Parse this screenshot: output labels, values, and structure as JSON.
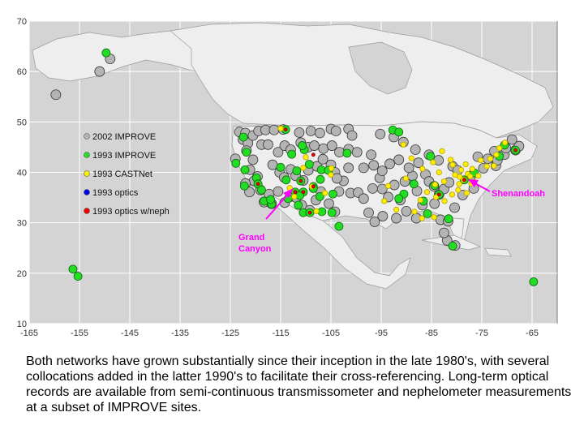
{
  "chart_data": {
    "type": "scatter",
    "title": "",
    "xlabel": "",
    "ylabel": "",
    "xlim": [
      -165,
      -60
    ],
    "ylim": [
      10,
      70
    ],
    "xticks": [
      -165,
      -155,
      -145,
      -135,
      -125,
      -115,
      -105,
      -95,
      -85,
      -75,
      -65
    ],
    "yticks": [
      10,
      20,
      30,
      40,
      50,
      60,
      70
    ],
    "grid": true,
    "background": "map of North America",
    "legend_position": "left-center",
    "legend": [
      {
        "label": "2002 IMPROVE",
        "color": "#b4b4b4"
      },
      {
        "label": "1993 IMPROVE",
        "color": "#22dd22"
      },
      {
        "label": "1993 CASTNet",
        "color": "#ffee00"
      },
      {
        "label": "1993 optics",
        "color": "#0000ee"
      },
      {
        "label": "1993 optics w/neph",
        "color": "#ee0000"
      }
    ],
    "annotations": [
      {
        "text": "Grand Canyon",
        "lines": [
          "Grand",
          "Canyon"
        ],
        "lon": -112.1,
        "lat": 36.1
      },
      {
        "text": "Shenandoah",
        "lines": [
          "Shenandoah"
        ],
        "lon": -78.4,
        "lat": 38.5
      }
    ],
    "series": [
      {
        "name": "2002 IMPROVE",
        "color": "#b4b4b4",
        "points": [
          [
            -159.7,
            55.4
          ],
          [
            -151,
            60
          ],
          [
            -148.9,
            62.5
          ],
          [
            -123.2,
            48
          ],
          [
            -122.5,
            46.5
          ],
          [
            -122,
            47.8
          ],
          [
            -121.5,
            45.8
          ],
          [
            -120.5,
            47.3
          ],
          [
            -119.4,
            48.2
          ],
          [
            -118,
            48.4
          ],
          [
            -116.3,
            48.4
          ],
          [
            -114.5,
            48.5
          ],
          [
            -111.3,
            47.9
          ],
          [
            -109,
            48.2
          ],
          [
            -107.2,
            47.8
          ],
          [
            -105,
            48.6
          ],
          [
            -104,
            48.2
          ],
          [
            -101.5,
            48.6
          ],
          [
            -100.8,
            47.3
          ],
          [
            -124,
            42.7
          ],
          [
            -121.8,
            44.3
          ],
          [
            -120.5,
            42.5
          ],
          [
            -118.8,
            45.5
          ],
          [
            -117.5,
            45.5
          ],
          [
            -115.5,
            44
          ],
          [
            -114.2,
            45.3
          ],
          [
            -113,
            44.5
          ],
          [
            -111,
            45.9
          ],
          [
            -109.5,
            45
          ],
          [
            -108.3,
            45.3
          ],
          [
            -106.5,
            44.7
          ],
          [
            -104.8,
            45.3
          ],
          [
            -103.3,
            44
          ],
          [
            -101.5,
            44.6
          ],
          [
            -99.8,
            44
          ],
          [
            -97,
            43.5
          ],
          [
            -121.1,
            40.5
          ],
          [
            -119.6,
            39.2
          ],
          [
            -120.3,
            38.3
          ],
          [
            -116.6,
            41.5
          ],
          [
            -115.2,
            40
          ],
          [
            -114.3,
            39
          ],
          [
            -113,
            40.6
          ],
          [
            -112,
            39.3
          ],
          [
            -110.5,
            38.4
          ],
          [
            -109.5,
            40.4
          ],
          [
            -107.8,
            41.2
          ],
          [
            -106.6,
            42.6
          ],
          [
            -105,
            41.5
          ],
          [
            -104.2,
            40
          ],
          [
            -102.5,
            38.3
          ],
          [
            -103.8,
            38.8
          ],
          [
            -101.5,
            40.9
          ],
          [
            -122,
            37.8
          ],
          [
            -121.2,
            36.1
          ],
          [
            -119,
            36.5
          ],
          [
            -118.3,
            34.1
          ],
          [
            -117.3,
            35.7
          ],
          [
            -116.8,
            33.8
          ],
          [
            -115.5,
            36.2
          ],
          [
            -114.2,
            34
          ],
          [
            -113,
            35.2
          ],
          [
            -111.9,
            35
          ],
          [
            -110.8,
            33.5
          ],
          [
            -109.2,
            32.5
          ],
          [
            -108,
            34.5
          ],
          [
            -107,
            36.2
          ],
          [
            -105.4,
            33.8
          ],
          [
            -104.2,
            32.2
          ],
          [
            -103.4,
            36.2
          ],
          [
            -101.1,
            35.9
          ],
          [
            -99.6,
            36
          ],
          [
            -98.5,
            34.8
          ],
          [
            -96.7,
            36.8
          ],
          [
            -95.3,
            38.9
          ],
          [
            -94.8,
            36.7
          ],
          [
            -93.6,
            35.1
          ],
          [
            -92.4,
            37.5
          ],
          [
            -91.2,
            34.5
          ],
          [
            -90.3,
            38.2
          ],
          [
            -88.8,
            39.3
          ],
          [
            -87.9,
            36.3
          ],
          [
            -86.2,
            39.6
          ],
          [
            -85.5,
            38.2
          ],
          [
            -84.5,
            37.2
          ],
          [
            -83.5,
            35.6
          ],
          [
            -82.5,
            36.7
          ],
          [
            -81.5,
            38
          ],
          [
            -98.5,
            40.9
          ],
          [
            -96.5,
            41.4
          ],
          [
            -94.8,
            40.3
          ],
          [
            -93.3,
            41.7
          ],
          [
            -91.5,
            42.5
          ],
          [
            -89.5,
            40.9
          ],
          [
            -87.6,
            41.9
          ],
          [
            -85.5,
            43.5
          ],
          [
            -83.6,
            42.4
          ],
          [
            -80.8,
            41.2
          ],
          [
            -79.8,
            40.4
          ],
          [
            -88.2,
            44.5
          ],
          [
            -90.6,
            46
          ],
          [
            -92.5,
            47
          ],
          [
            -95.2,
            47.6
          ],
          [
            -97.5,
            32
          ],
          [
            -96.3,
            30.2
          ],
          [
            -94.7,
            31.3
          ],
          [
            -92,
            30.9
          ],
          [
            -90,
            32.3
          ],
          [
            -88,
            30.9
          ],
          [
            -86.8,
            33.5
          ],
          [
            -84.4,
            33.8
          ],
          [
            -83.2,
            30.6
          ],
          [
            -81.7,
            30.3
          ],
          [
            -80.3,
            25.5
          ],
          [
            -81.9,
            26.5
          ],
          [
            -82.5,
            28
          ],
          [
            -80.4,
            33
          ],
          [
            -78.8,
            35.5
          ],
          [
            -77.2,
            39.3
          ],
          [
            -76.6,
            36.8
          ],
          [
            -74.7,
            40.8
          ],
          [
            -73.8,
            42.7
          ],
          [
            -72.2,
            41.3
          ],
          [
            -71.9,
            42.4
          ],
          [
            -71.2,
            44.3
          ],
          [
            -70.5,
            43.5
          ],
          [
            -70.2,
            44.8
          ],
          [
            -68.3,
            44.4
          ],
          [
            -67.6,
            45.2
          ],
          [
            -69,
            46.5
          ],
          [
            -72.5,
            44.2
          ],
          [
            -75.8,
            43.1
          ]
        ]
      },
      {
        "name": "1993 IMPROVE",
        "color": "#22dd22",
        "points": [
          [
            -149.7,
            63.7
          ],
          [
            -156.3,
            20.8
          ],
          [
            -155.3,
            19.4
          ],
          [
            -64.7,
            18.3
          ],
          [
            -122.4,
            47
          ],
          [
            -123.9,
            41.8
          ],
          [
            -121.8,
            44
          ],
          [
            -122.1,
            40.5
          ],
          [
            -119.8,
            38.9
          ],
          [
            -119.5,
            37.7
          ],
          [
            -118.8,
            36.5
          ],
          [
            -118.3,
            34.3
          ],
          [
            -116.8,
            33.7
          ],
          [
            -117,
            34.6
          ],
          [
            -122.2,
            37.3
          ],
          [
            -114,
            48.5
          ],
          [
            -115,
            41
          ],
          [
            -112.8,
            43.6
          ],
          [
            -113.9,
            38.5
          ],
          [
            -111,
            38.3
          ],
          [
            -110.5,
            36.1
          ],
          [
            -112.1,
            36.1
          ],
          [
            -111.5,
            33.5
          ],
          [
            -110.5,
            32
          ],
          [
            -109.2,
            32
          ],
          [
            -108.5,
            37.2
          ],
          [
            -107.1,
            38.6
          ],
          [
            -106.9,
            40.5
          ],
          [
            -105.5,
            40.4
          ],
          [
            -106.8,
            32.2
          ],
          [
            -103.4,
            29.3
          ],
          [
            -104.8,
            32
          ],
          [
            -104.6,
            35.7
          ],
          [
            -107.2,
            35.2
          ],
          [
            -111.8,
            40.3
          ],
          [
            -110.3,
            44.5
          ],
          [
            -110.7,
            45.3
          ],
          [
            -109.3,
            41.6
          ],
          [
            -101.8,
            43.8
          ],
          [
            -108.5,
            36.8
          ],
          [
            -113.5,
            34.8
          ],
          [
            -111.2,
            35.4
          ],
          [
            -92.7,
            48.4
          ],
          [
            -91.5,
            48
          ],
          [
            -86.6,
            34.3
          ],
          [
            -88.5,
            37.7
          ],
          [
            -90.5,
            35.7
          ],
          [
            -81.6,
            30.8
          ],
          [
            -83.5,
            35.6
          ],
          [
            -80.8,
            25.4
          ],
          [
            -70.5,
            45.4
          ],
          [
            -68.3,
            44.4
          ],
          [
            -76.5,
            39.9
          ],
          [
            -78.5,
            38.5
          ],
          [
            -71.5,
            43.2
          ],
          [
            -84.4,
            37.4
          ],
          [
            -85.2,
            43.2
          ],
          [
            -91.5,
            34.8
          ],
          [
            -85.8,
            31.8
          ]
        ]
      },
      {
        "name": "1993 CASTNet",
        "color": "#ffee00",
        "points": [
          [
            -115,
            48.7
          ],
          [
            -110,
            43
          ],
          [
            -108.8,
            37.2
          ],
          [
            -105,
            39.5
          ],
          [
            -106.2,
            35.9
          ],
          [
            -112.3,
            35.2
          ],
          [
            -107.9,
            32.3
          ],
          [
            -104.9,
            40.8
          ],
          [
            -110.5,
            40.9
          ],
          [
            -113.2,
            36.9
          ],
          [
            -90.6,
            45.5
          ],
          [
            -89,
            42.8
          ],
          [
            -86.8,
            40.7
          ],
          [
            -84.7,
            42
          ],
          [
            -83.5,
            40
          ],
          [
            -82.5,
            38.2
          ],
          [
            -84.3,
            37.6
          ],
          [
            -85.9,
            36.1
          ],
          [
            -87.2,
            34.5
          ],
          [
            -88.4,
            32.2
          ],
          [
            -86.9,
            30.9
          ],
          [
            -84.5,
            31.1
          ],
          [
            -82.4,
            34.3
          ],
          [
            -80.9,
            35.6
          ],
          [
            -79.7,
            36.5
          ],
          [
            -78,
            35.9
          ],
          [
            -77.1,
            37.8
          ],
          [
            -78.6,
            38.5
          ],
          [
            -79.5,
            37.7
          ],
          [
            -77.8,
            39.7
          ],
          [
            -76.5,
            38.1
          ],
          [
            -75.7,
            39.3
          ],
          [
            -76.9,
            40.7
          ],
          [
            -79.1,
            40.5
          ],
          [
            -80.3,
            39.5
          ],
          [
            -80.8,
            41.5
          ],
          [
            -78.2,
            41.6
          ],
          [
            -75.2,
            42.4
          ],
          [
            -74,
            41.2
          ],
          [
            -73.3,
            42.7
          ],
          [
            -72.1,
            43.5
          ],
          [
            -71.5,
            44.8
          ],
          [
            -70.4,
            45.9
          ],
          [
            -72.6,
            41.3
          ],
          [
            -82.9,
            44.2
          ],
          [
            -81.2,
            42.5
          ],
          [
            -90.1,
            38.8
          ],
          [
            -93.6,
            37.3
          ],
          [
            -94.4,
            34.3
          ],
          [
            -92,
            32.6
          ],
          [
            -84.1,
            35.1
          ],
          [
            -77.3,
            39.2
          ],
          [
            -79.4,
            39.1
          ]
        ]
      },
      {
        "name": "1993 optics",
        "color": "#0000ee",
        "points": []
      },
      {
        "name": "1993 optics w/neph",
        "color": "#ee0000",
        "points": [
          [
            -114,
            48.5
          ],
          [
            -108.5,
            43.5
          ],
          [
            -112.1,
            36.1
          ],
          [
            -111,
            38.3
          ],
          [
            -108.5,
            37.2
          ],
          [
            -110.5,
            36.1
          ],
          [
            -83.5,
            35.6
          ],
          [
            -78.5,
            38.5
          ],
          [
            -68.3,
            44.4
          ],
          [
            -119.5,
            37.7
          ],
          [
            -109.2,
            32
          ]
        ]
      }
    ]
  },
  "caption": "Both networks have grown substantially since their inception in the late 1980's, with several collocations added in the latter 1990's to facilitate their cross-referencing. Long-term optical records are available from semi-continuous transmissometer and nephelometer measurements at a subset of IMPROVE sites."
}
